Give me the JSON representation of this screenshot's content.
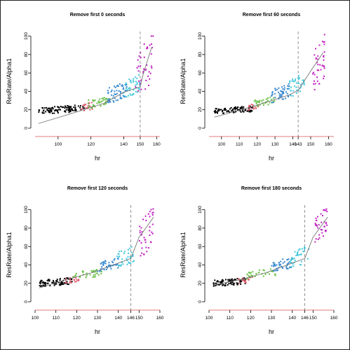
{
  "chart_data": [
    {
      "type": "scatter",
      "title": "Remove first 0 seconds",
      "xlabel": "hr",
      "ylabel": "ResRate/Alpha1",
      "xlim": [
        86,
        162
      ],
      "ylim": [
        -3,
        105
      ],
      "xticks": [
        100,
        120,
        140,
        150,
        160
      ],
      "yticks": [
        0,
        20,
        40,
        60,
        80,
        100
      ],
      "vline": 150,
      "vline_label": "150",
      "fit": [
        [
          88,
          5
        ],
        [
          112,
          18
        ],
        [
          128,
          27
        ],
        [
          140,
          39
        ],
        [
          150,
          45
        ],
        [
          152,
          60
        ],
        [
          157,
          88
        ]
      ],
      "clusters": [
        {
          "color": "#000000",
          "x": [
            88,
            116
          ],
          "y": [
            16,
            25
          ],
          "n": 95
        },
        {
          "color": "#e06070",
          "x": [
            114,
            121
          ],
          "y": [
            18,
            28
          ],
          "n": 22
        },
        {
          "color": "#6cc04a",
          "x": [
            118,
            132
          ],
          "y": [
            22,
            34
          ],
          "n": 40
        },
        {
          "color": "#3a8ad0",
          "x": [
            130,
            142
          ],
          "y": [
            28,
            50
          ],
          "n": 55
        },
        {
          "color": "#44c8dd",
          "x": [
            140,
            150
          ],
          "y": [
            34,
            58
          ],
          "n": 45
        },
        {
          "color": "#c020c0",
          "x": [
            147,
            158
          ],
          "y": [
            35,
            100
          ],
          "n": 40
        }
      ]
    },
    {
      "type": "scatter",
      "title": "Remove first 60 seconds",
      "xlabel": "hr",
      "ylabel": "ResRate/Alpha1",
      "xlim": [
        93,
        163
      ],
      "ylim": [
        -3,
        105
      ],
      "xticks": [
        100,
        110,
        120,
        130,
        140,
        143,
        150,
        160
      ],
      "yticks": [
        0,
        20,
        40,
        60,
        80,
        100
      ],
      "vline": 143,
      "vline_label": "143",
      "fit": [
        [
          96,
          12
        ],
        [
          115,
          22
        ],
        [
          128,
          30
        ],
        [
          138,
          36
        ],
        [
          143,
          41
        ],
        [
          150,
          62
        ],
        [
          157,
          82
        ]
      ],
      "clusters": [
        {
          "color": "#000000",
          "x": [
            96,
            118
          ],
          "y": [
            16,
            24
          ],
          "n": 90
        },
        {
          "color": "#e06070",
          "x": [
            115,
            121
          ],
          "y": [
            20,
            28
          ],
          "n": 20
        },
        {
          "color": "#6cc04a",
          "x": [
            118,
            130
          ],
          "y": [
            24,
            34
          ],
          "n": 38
        },
        {
          "color": "#3a8ad0",
          "x": [
            128,
            138
          ],
          "y": [
            28,
            48
          ],
          "n": 50
        },
        {
          "color": "#44c8dd",
          "x": [
            138,
            147
          ],
          "y": [
            35,
            60
          ],
          "n": 40
        },
        {
          "color": "#c020c0",
          "x": [
            151,
            158
          ],
          "y": [
            38,
            102
          ],
          "n": 40
        }
      ]
    },
    {
      "type": "scatter",
      "title": "Remove first 120 seconds",
      "xlabel": "hr",
      "ylabel": "ResRate/Alpha1",
      "xlim": [
        100,
        160
      ],
      "ylim": [
        -3,
        105
      ],
      "xticks": [
        100,
        110,
        120,
        130,
        140,
        146,
        150,
        160
      ],
      "yticks": [
        0,
        20,
        40,
        60,
        80,
        100
      ],
      "vline": 146,
      "vline_label": "146",
      "fit": [
        [
          102,
          15
        ],
        [
          115,
          24
        ],
        [
          128,
          32
        ],
        [
          140,
          42
        ],
        [
          146,
          47
        ],
        [
          150,
          70
        ],
        [
          157,
          92
        ]
      ],
      "clusters": [
        {
          "color": "#000000",
          "x": [
            102,
            118
          ],
          "y": [
            17,
            26
          ],
          "n": 90
        },
        {
          "color": "#e06070",
          "x": [
            114,
            121
          ],
          "y": [
            20,
            28
          ],
          "n": 20
        },
        {
          "color": "#6cc04a",
          "x": [
            118,
            132
          ],
          "y": [
            25,
            36
          ],
          "n": 38
        },
        {
          "color": "#3a8ad0",
          "x": [
            130,
            140
          ],
          "y": [
            33,
            48
          ],
          "n": 45
        },
        {
          "color": "#44c8dd",
          "x": [
            139,
            148
          ],
          "y": [
            38,
            60
          ],
          "n": 38
        },
        {
          "color": "#c020c0",
          "x": [
            150,
            157
          ],
          "y": [
            50,
            102
          ],
          "n": 40
        }
      ]
    },
    {
      "type": "scatter",
      "title": "Remove first 180 seconds",
      "xlabel": "hr",
      "ylabel": "ResRate/Alpha1",
      "xlim": [
        100,
        160
      ],
      "ylim": [
        -3,
        105
      ],
      "xticks": [
        100,
        110,
        120,
        130,
        140,
        146,
        150,
        160
      ],
      "yticks": [
        0,
        20,
        40,
        60,
        80,
        100
      ],
      "vline": 146,
      "vline_label": "146",
      "fit": [
        [
          102,
          18
        ],
        [
          115,
          24
        ],
        [
          128,
          32
        ],
        [
          140,
          42
        ],
        [
          146,
          47
        ],
        [
          150,
          70
        ],
        [
          157,
          92
        ]
      ],
      "clusters": [
        {
          "color": "#000000",
          "x": [
            102,
            118
          ],
          "y": [
            17,
            26
          ],
          "n": 85
        },
        {
          "color": "#e06070",
          "x": [
            114,
            121
          ],
          "y": [
            20,
            28
          ],
          "n": 20
        },
        {
          "color": "#6cc04a",
          "x": [
            118,
            132
          ],
          "y": [
            25,
            36
          ],
          "n": 38
        },
        {
          "color": "#3a8ad0",
          "x": [
            130,
            140
          ],
          "y": [
            33,
            48
          ],
          "n": 45
        },
        {
          "color": "#44c8dd",
          "x": [
            139,
            148
          ],
          "y": [
            38,
            60
          ],
          "n": 38
        },
        {
          "color": "#c020c0",
          "x": [
            151,
            157
          ],
          "y": [
            65,
            102
          ],
          "n": 38
        }
      ]
    }
  ]
}
